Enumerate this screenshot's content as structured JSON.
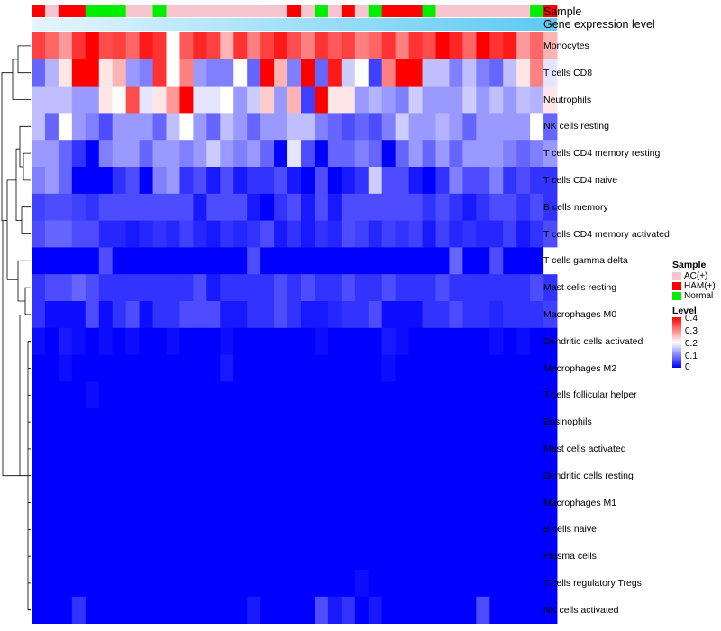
{
  "chart_data": {
    "type": "heatmap",
    "title": "",
    "annotations": {
      "sample_label": "Sample",
      "gene_label": "Gene expression level",
      "samples": [
        "H",
        "A",
        "H",
        "H",
        "N",
        "N",
        "N",
        "A",
        "A",
        "N",
        "A",
        "A",
        "A",
        "A",
        "A",
        "A",
        "A",
        "A",
        "A",
        "H",
        "A",
        "N",
        "A",
        "H",
        "A",
        "N",
        "H",
        "H",
        "H",
        "N",
        "A",
        "A",
        "A",
        "A",
        "A",
        "A",
        "A",
        "N",
        "H"
      ]
    },
    "rows": [
      "Monocytes",
      "T cells CD8",
      "Neutrophils",
      "NK cells resting",
      "T cells CD4 memory resting",
      "T cells CD4 naive",
      "B cells memory",
      "T cells CD4 memory activated",
      "T cells gamma delta",
      "Mast cells resting",
      "Macrophages M0",
      "Dendritic cells activated",
      "Macrophages M2",
      "T cells follicular helper",
      "Eosinophils",
      "Mast cells activated",
      "Dendritic cells resting",
      "Macrophages M1",
      "B cells naive",
      "Plasma cells",
      "T cells regulatory  Tregs",
      "NK cells activated"
    ],
    "values": [
      [
        0.35,
        0.32,
        0.28,
        0.36,
        0.4,
        0.34,
        0.35,
        0.32,
        0.38,
        0.36,
        0.2,
        0.33,
        0.37,
        0.35,
        0.26,
        0.36,
        0.3,
        0.35,
        0.38,
        0.34,
        0.3,
        0.36,
        0.33,
        0.35,
        0.3,
        0.32,
        0.36,
        0.3,
        0.36,
        0.34,
        0.4,
        0.37,
        0.32,
        0.42,
        0.36,
        0.38,
        0.28,
        0.32,
        0.26
      ],
      [
        0.08,
        0.14,
        0.22,
        0.42,
        0.45,
        0.22,
        0.26,
        0.12,
        0.1,
        0.36,
        0.2,
        0.3,
        0.12,
        0.1,
        0.1,
        0.2,
        0.08,
        0.45,
        0.26,
        0.1,
        0.42,
        0.08,
        0.38,
        0.16,
        0.2,
        0.05,
        0.3,
        0.42,
        0.42,
        0.15,
        0.15,
        0.1,
        0.15,
        0.1,
        0.08,
        0.15,
        0.22,
        0.3,
        0.18
      ],
      [
        0.15,
        0.15,
        0.15,
        0.12,
        0.12,
        0.22,
        0.2,
        0.34,
        0.18,
        0.22,
        0.28,
        0.48,
        0.18,
        0.18,
        0.2,
        0.12,
        0.16,
        0.24,
        0.12,
        0.26,
        0.05,
        0.42,
        0.22,
        0.22,
        0.12,
        0.14,
        0.12,
        0.1,
        0.16,
        0.12,
        0.12,
        0.12,
        0.16,
        0.12,
        0.15,
        0.12,
        0.15,
        0.14,
        0.22
      ],
      [
        0.15,
        0.08,
        0.2,
        0.12,
        0.1,
        0.06,
        0.12,
        0.12,
        0.12,
        0.08,
        0.15,
        0.2,
        0.12,
        0.08,
        0.15,
        0.12,
        0.08,
        0.12,
        0.12,
        0.15,
        0.15,
        0.1,
        0.08,
        0.06,
        0.08,
        0.06,
        0.1,
        0.16,
        0.12,
        0.12,
        0.14,
        0.12,
        0.08,
        0.12,
        0.12,
        0.12,
        0.12,
        0.2,
        0.08
      ],
      [
        0.12,
        0.12,
        0.08,
        0.04,
        0.0,
        0.1,
        0.12,
        0.12,
        0.08,
        0.12,
        0.12,
        0.1,
        0.12,
        0.16,
        0.12,
        0.1,
        0.12,
        0.08,
        0.0,
        0.18,
        0.06,
        0.0,
        0.08,
        0.08,
        0.1,
        0.08,
        0.0,
        0.08,
        0.12,
        0.08,
        0.12,
        0.08,
        0.12,
        0.12,
        0.12,
        0.1,
        0.08,
        0.1,
        0.12
      ],
      [
        0.1,
        0.12,
        0.08,
        0.0,
        0.0,
        0.0,
        0.04,
        0.06,
        0.0,
        0.1,
        0.12,
        0.04,
        0.06,
        0.02,
        0.06,
        0.02,
        0.04,
        0.04,
        0.06,
        0.02,
        0.0,
        0.06,
        0.0,
        0.02,
        0.04,
        0.16,
        0.06,
        0.06,
        0.02,
        0.0,
        0.04,
        0.1,
        0.06,
        0.06,
        0.1,
        0.04,
        0.06,
        0.04,
        0.04
      ],
      [
        0.05,
        0.06,
        0.06,
        0.05,
        0.04,
        0.06,
        0.06,
        0.06,
        0.06,
        0.06,
        0.06,
        0.06,
        0.02,
        0.06,
        0.06,
        0.06,
        0.02,
        0.0,
        0.04,
        0.06,
        0.02,
        0.06,
        0.02,
        0.06,
        0.06,
        0.06,
        0.06,
        0.06,
        0.06,
        0.04,
        0.06,
        0.04,
        0.02,
        0.04,
        0.06,
        0.06,
        0.04,
        0.06,
        0.04
      ],
      [
        0.06,
        0.08,
        0.08,
        0.06,
        0.06,
        0.03,
        0.03,
        0.02,
        0.03,
        0.04,
        0.03,
        0.05,
        0.03,
        0.02,
        0.04,
        0.03,
        0.04,
        0.06,
        0.02,
        0.04,
        0.02,
        0.04,
        0.03,
        0.06,
        0.05,
        0.03,
        0.05,
        0.04,
        0.05,
        0.02,
        0.05,
        0.03,
        0.04,
        0.03,
        0.03,
        0.05,
        0.02,
        0.04,
        0.06
      ],
      [
        0.0,
        0.0,
        0.0,
        0.0,
        0.0,
        0.06,
        0.0,
        0.0,
        0.0,
        0.0,
        0.0,
        0.0,
        0.0,
        0.0,
        0.0,
        0.0,
        0.06,
        0.0,
        0.0,
        0.0,
        0.0,
        0.0,
        0.0,
        0.0,
        0.0,
        0.0,
        0.0,
        0.0,
        0.0,
        0.0,
        0.0,
        0.08,
        0.0,
        0.0,
        0.06,
        0.0,
        0.0,
        0.0,
        0.2
      ],
      [
        0.04,
        0.06,
        0.06,
        0.08,
        0.06,
        0.04,
        0.04,
        0.04,
        0.04,
        0.04,
        0.04,
        0.04,
        0.06,
        0.02,
        0.04,
        0.04,
        0.04,
        0.04,
        0.06,
        0.04,
        0.06,
        0.04,
        0.04,
        0.06,
        0.04,
        0.04,
        0.06,
        0.04,
        0.04,
        0.04,
        0.06,
        0.04,
        0.04,
        0.04,
        0.04,
        0.04,
        0.04,
        0.06,
        0.04
      ],
      [
        0.04,
        0.01,
        0.01,
        0.01,
        0.06,
        0.01,
        0.04,
        0.06,
        0.01,
        0.04,
        0.04,
        0.06,
        0.06,
        0.06,
        0.02,
        0.02,
        0.04,
        0.04,
        0.06,
        0.04,
        0.02,
        0.02,
        0.03,
        0.04,
        0.04,
        0.06,
        0.01,
        0.01,
        0.01,
        0.04,
        0.04,
        0.06,
        0.04,
        0.04,
        0.03,
        0.04,
        0.04,
        0.04,
        0.05
      ],
      [
        0.01,
        0.0,
        0.02,
        0.01,
        0.0,
        0.01,
        0.0,
        0.01,
        0.0,
        0.0,
        0.01,
        0.0,
        0.0,
        0.0,
        0.01,
        0.0,
        0.0,
        0.0,
        0.0,
        0.0,
        0.0,
        0.01,
        0.0,
        0.0,
        0.0,
        0.0,
        0.02,
        0.01,
        0.0,
        0.0,
        0.0,
        0.0,
        0.0,
        0.0,
        0.01,
        0.0,
        0.01,
        0.0,
        0.0
      ],
      [
        0.0,
        0.0,
        0.01,
        0.0,
        0.0,
        0.0,
        0.0,
        0.0,
        0.0,
        0.0,
        0.0,
        0.0,
        0.0,
        0.0,
        0.02,
        0.0,
        0.0,
        0.0,
        0.0,
        0.0,
        0.0,
        0.0,
        0.0,
        0.0,
        0.0,
        0.0,
        0.01,
        0.0,
        0.0,
        0.0,
        0.0,
        0.0,
        0.0,
        0.0,
        0.0,
        0.0,
        0.0,
        0.0,
        0.0
      ],
      [
        0.0,
        0.0,
        0.0,
        0.0,
        0.01,
        0.0,
        0.0,
        0.0,
        0.0,
        0.0,
        0.0,
        0.0,
        0.0,
        0.0,
        0.0,
        0.0,
        0.0,
        0.0,
        0.0,
        0.0,
        0.0,
        0.0,
        0.0,
        0.0,
        0.0,
        0.0,
        0.0,
        0.0,
        0.0,
        0.0,
        0.0,
        0.0,
        0.0,
        0.0,
        0.0,
        0.0,
        0.0,
        0.0,
        0.0
      ],
      [
        0,
        0,
        0,
        0,
        0,
        0,
        0,
        0,
        0,
        0,
        0,
        0,
        0,
        0,
        0,
        0,
        0,
        0,
        0,
        0,
        0,
        0,
        0,
        0,
        0,
        0,
        0,
        0,
        0,
        0,
        0,
        0,
        0,
        0,
        0,
        0,
        0,
        0,
        0
      ],
      [
        0,
        0,
        0,
        0,
        0,
        0,
        0,
        0,
        0,
        0,
        0,
        0,
        0,
        0,
        0,
        0,
        0,
        0,
        0,
        0,
        0,
        0,
        0,
        0,
        0,
        0,
        0,
        0,
        0,
        0,
        0,
        0,
        0,
        0,
        0,
        0,
        0,
        0,
        0
      ],
      [
        0,
        0,
        0,
        0,
        0,
        0,
        0,
        0,
        0,
        0,
        0,
        0,
        0,
        0,
        0,
        0,
        0,
        0,
        0,
        0,
        0,
        0,
        0,
        0,
        0,
        0,
        0,
        0,
        0,
        0,
        0,
        0,
        0,
        0,
        0,
        0,
        0,
        0,
        0
      ],
      [
        0,
        0,
        0,
        0,
        0,
        0,
        0,
        0,
        0,
        0,
        0,
        0,
        0,
        0,
        0,
        0,
        0,
        0,
        0,
        0,
        0,
        0,
        0,
        0,
        0,
        0,
        0,
        0,
        0,
        0,
        0,
        0,
        0,
        0,
        0,
        0,
        0,
        0,
        0
      ],
      [
        0,
        0,
        0,
        0,
        0,
        0,
        0,
        0,
        0,
        0,
        0,
        0,
        0,
        0,
        0,
        0,
        0,
        0,
        0,
        0,
        0,
        0,
        0,
        0,
        0,
        0,
        0,
        0,
        0,
        0,
        0,
        0,
        0,
        0,
        0,
        0,
        0,
        0,
        0
      ],
      [
        0,
        0,
        0,
        0,
        0,
        0,
        0,
        0,
        0,
        0,
        0,
        0,
        0,
        0,
        0,
        0,
        0,
        0,
        0,
        0,
        0,
        0,
        0,
        0,
        0,
        0,
        0,
        0,
        0,
        0,
        0,
        0,
        0,
        0,
        0,
        0,
        0,
        0,
        0
      ],
      [
        0,
        0,
        0,
        0,
        0,
        0,
        0,
        0,
        0,
        0,
        0,
        0,
        0,
        0,
        0,
        0,
        0,
        0,
        0,
        0,
        0,
        0,
        0,
        0,
        0.01,
        0,
        0,
        0,
        0,
        0,
        0,
        0,
        0,
        0,
        0,
        0,
        0,
        0,
        0
      ],
      [
        0.0,
        0.0,
        0.0,
        0.04,
        0.0,
        0.0,
        0.0,
        0.0,
        0.0,
        0.0,
        0.0,
        0.0,
        0.0,
        0.0,
        0.0,
        0.0,
        0.02,
        0.0,
        0.0,
        0.0,
        0.0,
        0.06,
        0.02,
        0.04,
        0.0,
        0.02,
        0.0,
        0.0,
        0.0,
        0.0,
        0.0,
        0.0,
        0.0,
        0.06,
        0.0,
        0.0,
        0.0,
        0.0,
        0.0
      ]
    ],
    "color_scale": {
      "min": 0,
      "mid": 0.2,
      "max": 0.4,
      "low": "#0000ff",
      "midColor": "#ffffff",
      "high": "#ff0000"
    },
    "legend": {
      "sample_title": "Sample",
      "sample_items": [
        {
          "key": "A",
          "label": "AC(+)",
          "color": "#f7c5cf"
        },
        {
          "key": "H",
          "label": "HAM(+)",
          "color": "#ff0000"
        },
        {
          "key": "N",
          "label": "Normal",
          "color": "#00ee00"
        }
      ],
      "level_title": "Level",
      "level_ticks": [
        "0.4",
        "0.3",
        "0.2",
        "0.1",
        "0"
      ],
      "gene_bar_colors": [
        "#e6f5ff",
        "#5ecaf3"
      ]
    }
  }
}
